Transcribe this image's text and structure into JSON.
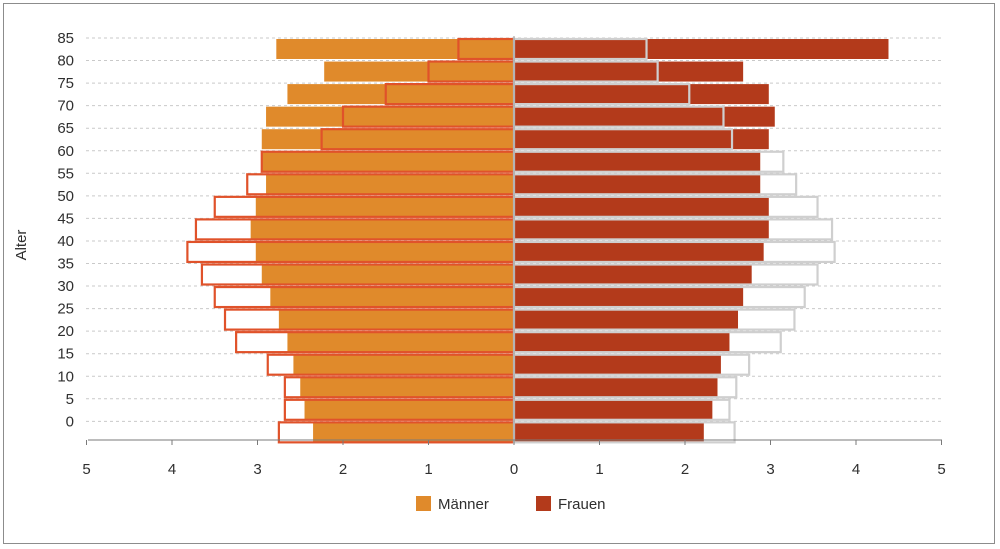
{
  "chart_data": {
    "type": "bar",
    "orientation": "horizontal",
    "ylabel": "Alter",
    "y_ticks": [
      "85",
      "80",
      "75",
      "70",
      "65",
      "60",
      "55",
      "50",
      "45",
      "40",
      "35",
      "30",
      "25",
      "20",
      "15",
      "10",
      "5",
      "0"
    ],
    "x_ticks": [
      "5",
      "4",
      "3",
      "2",
      "1",
      "0",
      "1",
      "2",
      "3",
      "4",
      "5"
    ],
    "xlim": [
      -5,
      5
    ],
    "grid": "horizontal-dashed",
    "legend_position": "bottom-center",
    "series": [
      {
        "name": "Männer",
        "color": "#e08a2b",
        "values": [
          2.78,
          2.22,
          2.65,
          2.9,
          2.95,
          2.95,
          2.9,
          3.02,
          3.08,
          3.02,
          2.95,
          2.85,
          2.75,
          2.65,
          2.58,
          2.5,
          2.45,
          2.35
        ]
      },
      {
        "name": "Frauen",
        "color": "#b33a1b",
        "values": [
          4.38,
          2.68,
          2.98,
          3.05,
          2.98,
          2.88,
          2.88,
          2.98,
          2.98,
          2.92,
          2.78,
          2.68,
          2.62,
          2.52,
          2.42,
          2.38,
          2.32,
          2.22
        ]
      },
      {
        "outline_color": "#e0522a",
        "values": [
          0.65,
          1.0,
          1.5,
          2.0,
          2.25,
          2.95,
          3.12,
          3.5,
          3.72,
          3.82,
          3.65,
          3.5,
          3.38,
          3.25,
          2.88,
          2.68,
          2.68,
          2.75
        ]
      },
      {
        "outline_color": "#cfcfcf",
        "values": [
          1.55,
          1.68,
          2.05,
          2.45,
          2.55,
          3.15,
          3.3,
          3.55,
          3.72,
          3.75,
          3.55,
          3.4,
          3.28,
          3.12,
          2.75,
          2.6,
          2.52,
          2.58
        ]
      }
    ]
  },
  "legend": [
    {
      "label": "Männer",
      "color": "#e08a2b"
    },
    {
      "label": "Frauen",
      "color": "#b33a1b"
    }
  ]
}
